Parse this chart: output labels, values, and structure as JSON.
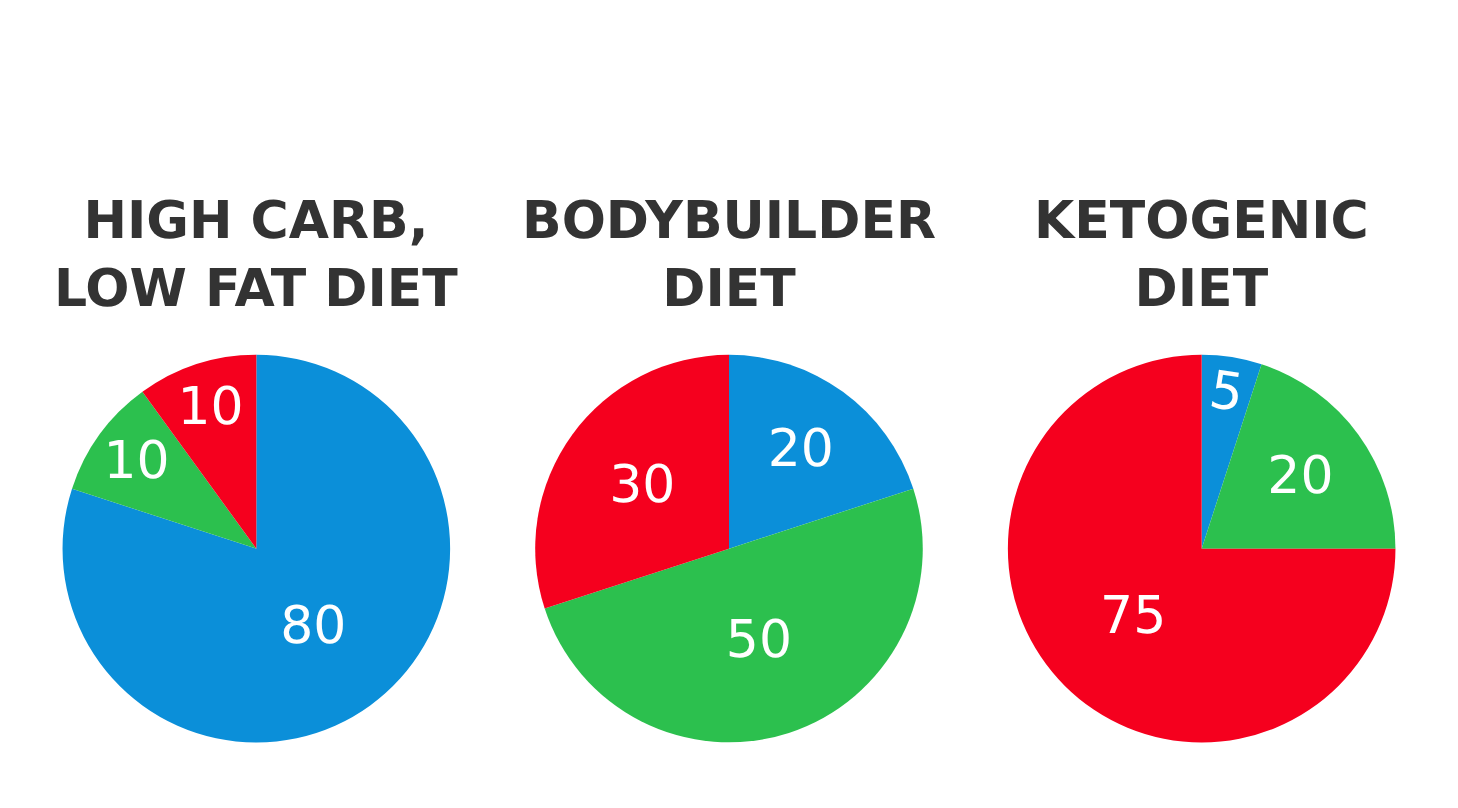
{
  "chart_data": [
    {
      "type": "pie",
      "title": "HIGH CARB,\nLOW FAT DIET",
      "categories": [
        null,
        null,
        null
      ],
      "values": [
        80,
        10,
        10
      ],
      "colors": [
        "#0b8fd9",
        "#2cc04e",
        "#f5001e"
      ],
      "data_labels": true
    },
    {
      "type": "pie",
      "title": "BODYBUILDER\nDIET",
      "categories": [
        null,
        null,
        null
      ],
      "values": [
        20,
        50,
        30
      ],
      "colors": [
        "#0b8fd9",
        "#2cc04e",
        "#f5001e"
      ],
      "data_labels": true
    },
    {
      "type": "pie",
      "title": "KETOGENIC\nDIET",
      "categories": [
        null,
        null,
        null
      ],
      "values": [
        5,
        20,
        75
      ],
      "colors": [
        "#0b8fd9",
        "#2cc04e",
        "#f5001e"
      ],
      "data_labels": true
    }
  ]
}
